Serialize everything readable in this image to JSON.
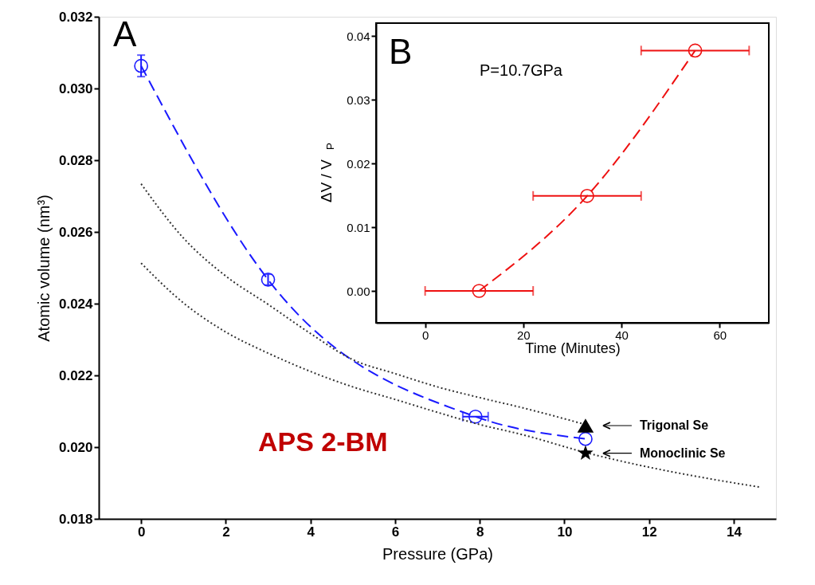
{
  "chart_data": [
    {
      "type": "line",
      "xlabel": "Pressure (GPa)",
      "ylabel": "Atomic volume (nm³)",
      "xlim": [
        -1,
        15
      ],
      "xticks": [
        0,
        2,
        4,
        6,
        8,
        10,
        12,
        14
      ],
      "ylim": [
        0.018,
        0.032
      ],
      "yticks": [
        0.018,
        {
          "value": 0.02,
          "label": "0.020"
        },
        0.022,
        0.024,
        0.026,
        0.028,
        {
          "value": 0.03,
          "label": "0.030"
        },
        0.032
      ],
      "grid": false,
      "legend": "right",
      "annotations": [
        "A",
        "APS 2-BM"
      ],
      "series": [
        {
          "color": "#1a1aff",
          "x": [
            0,
            3,
            7.9,
            10.5
          ],
          "values": [
            0.03063,
            0.02467,
            0.02085,
            0.02023
          ],
          "errors": [
            0.0003,
            0.00015,
            null,
            null
          ],
          "xerrors": [
            null,
            null,
            0.3,
            null
          ],
          "marker": "circle",
          "line_style": "dashed"
        },
        {
          "color": "#333333",
          "x": [
            0,
            1,
            2,
            3,
            4,
            5,
            6,
            7,
            8,
            9,
            10.5
          ],
          "values": [
            0.02734,
            0.02583,
            0.02477,
            0.02398,
            0.02317,
            0.02244,
            0.02205,
            0.02168,
            0.02138,
            0.0211,
            0.02063
          ],
          "marker": "none",
          "line_style": "dotted"
        },
        {
          "color": "#333333",
          "x": [
            0,
            1,
            2,
            3,
            4,
            5,
            6,
            7,
            8,
            9,
            10.5,
            12,
            13,
            14.64
          ],
          "values": [
            0.02513,
            0.02402,
            0.02321,
            0.02262,
            0.02211,
            0.02168,
            0.02133,
            0.02097,
            0.02063,
            0.02035,
            0.01985,
            0.01944,
            0.01921,
            0.01888
          ],
          "marker": "none",
          "line_style": "dotted"
        },
        {
          "type": "scatter",
          "name": "Trigonal Se",
          "color": "#000000",
          "x": [
            10.5
          ],
          "values": [
            0.0206
          ],
          "marker": "triangle"
        },
        {
          "type": "scatter",
          "name": "Monoclinic Se",
          "color": "#000000",
          "x": [
            10.5
          ],
          "values": [
            0.01983
          ],
          "marker": "star"
        }
      ]
    },
    {
      "type": "line",
      "xlabel": "Time (Minutes)",
      "ylabel": "ΔV / V$_{P}$",
      "xlim": [
        -10,
        70
      ],
      "xticks": [
        0,
        20,
        40,
        60
      ],
      "ylim": [
        -0.005,
        0.042
      ],
      "yticks": [
        {
          "value": 0,
          "label": "0.00"
        },
        0.01,
        0.02,
        0.03,
        0.04
      ],
      "grid": false,
      "annotations": [
        "B",
        "P=10.7GPa"
      ],
      "series": [
        {
          "color": "#ee1111",
          "x": [
            11,
            33,
            55
          ],
          "values": [
            0,
            0.0149,
            0.0377
          ],
          "xerrors": [
            11,
            11,
            11
          ],
          "marker": "circle",
          "line_style": "dashed"
        }
      ]
    }
  ]
}
